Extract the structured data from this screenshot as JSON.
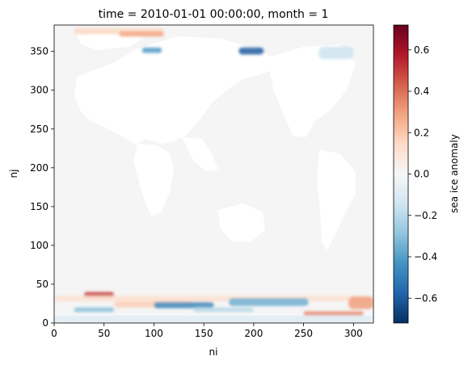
{
  "chart_data": {
    "type": "heatmap",
    "title": "time = 2010-01-01 00:00:00, month = 1",
    "xlabel": "ni",
    "ylabel": "nj",
    "xlim": [
      0,
      320
    ],
    "ylim": [
      0,
      384
    ],
    "xticks": [
      0,
      50,
      100,
      150,
      200,
      250,
      300
    ],
    "yticks": [
      0,
      50,
      100,
      150,
      200,
      250,
      300,
      350
    ],
    "colorbar": {
      "label": "sea ice anomaly",
      "colormap": "RdBu_r",
      "vmin": -0.72,
      "vmax": 0.72,
      "ticks": [
        -0.6,
        -0.4,
        -0.2,
        0.0,
        0.2,
        0.4,
        0.6
      ],
      "tick_labels": [
        "−0.6",
        "−0.4",
        "−0.2",
        "0.0",
        "0.2",
        "0.4",
        "0.6"
      ]
    },
    "ocean_fill": "#f5f5f5",
    "land_fill": "#ffffff",
    "grid": false,
    "anomaly_regions": [
      {
        "ni": [
          20,
          110
        ],
        "nj": [
          372,
          380
        ],
        "value": 0.15
      },
      {
        "ni": [
          65,
          110
        ],
        "nj": [
          369,
          376
        ],
        "value": 0.28
      },
      {
        "ni": [
          88,
          108
        ],
        "nj": [
          348,
          355
        ],
        "value": -0.4
      },
      {
        "ni": [
          185,
          210
        ],
        "nj": [
          346,
          355
        ],
        "value": -0.6
      },
      {
        "ni": [
          265,
          300
        ],
        "nj": [
          340,
          356
        ],
        "value": -0.15
      },
      {
        "ni": [
          30,
          60
        ],
        "nj": [
          33,
          40
        ],
        "value": 0.5
      },
      {
        "ni": [
          0,
          320
        ],
        "nj": [
          28,
          35
        ],
        "value": 0.12
      },
      {
        "ni": [
          60,
          140
        ],
        "nj": [
          20,
          28
        ],
        "value": 0.18
      },
      {
        "ni": [
          100,
          160
        ],
        "nj": [
          19,
          27
        ],
        "value": -0.45
      },
      {
        "ni": [
          175,
          255
        ],
        "nj": [
          22,
          32
        ],
        "value": -0.35
      },
      {
        "ni": [
          20,
          60
        ],
        "nj": [
          14,
          20
        ],
        "value": -0.3
      },
      {
        "ni": [
          140,
          200
        ],
        "nj": [
          14,
          20
        ],
        "value": -0.2
      },
      {
        "ni": [
          250,
          310
        ],
        "nj": [
          9,
          15
        ],
        "value": 0.35
      },
      {
        "ni": [
          295,
          320
        ],
        "nj": [
          18,
          34
        ],
        "value": 0.3
      },
      {
        "ni": [
          0,
          320
        ],
        "nj": [
          0,
          10
        ],
        "value": -0.1
      }
    ]
  }
}
